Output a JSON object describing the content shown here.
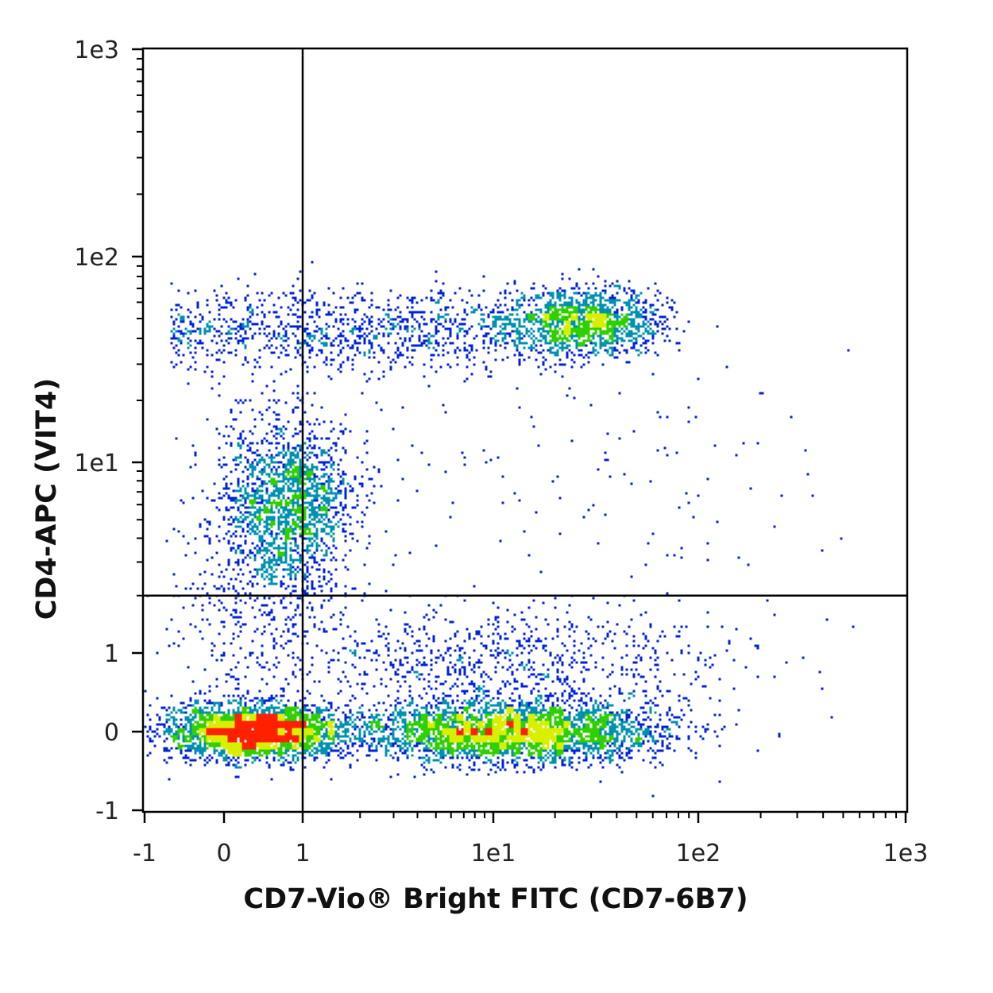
{
  "chart_data": {
    "type": "scatter",
    "subtype": "flow-cytometry density dot plot",
    "xlabel": "CD7-Vio® Bright FITC (CD7-6B7)",
    "ylabel": "CD4-APC (VIT4)",
    "x_scale": "hyperlog (linear -1..1, log above 1)",
    "y_scale": "hyperlog (linear -1..1, log above 1)",
    "xlim": [
      -1,
      1000
    ],
    "ylim": [
      -1,
      1000
    ],
    "x_ticks": [
      {
        "value": -1,
        "label": "-1"
      },
      {
        "value": 0,
        "label": "0"
      },
      {
        "value": 1,
        "label": "1"
      },
      {
        "value": 10,
        "label": "1e1"
      },
      {
        "value": 100,
        "label": "1e2"
      },
      {
        "value": 1000,
        "label": "1e3"
      }
    ],
    "y_ticks": [
      {
        "value": -1,
        "label": "-1"
      },
      {
        "value": 0,
        "label": "0"
      },
      {
        "value": 1,
        "label": "1"
      },
      {
        "value": 10,
        "label": "1e1"
      },
      {
        "value": 100,
        "label": "1e2"
      },
      {
        "value": 1000,
        "label": "1e3"
      }
    ],
    "quadrant_gates": {
      "x": 1,
      "y": 2
    },
    "populations": [
      {
        "quadrant": "CD4- CD7-",
        "x_center": 0.4,
        "y_center": 0,
        "relative_density": "highest"
      },
      {
        "quadrant": "CD4- CD7+",
        "x_center": 12,
        "y_center": 0,
        "relative_density": "high"
      },
      {
        "quadrant": "CD4+ CD7-",
        "x_center": 0.8,
        "y_center": 6,
        "relative_density": "medium"
      },
      {
        "quadrant": "CD4+ CD7+",
        "x_center": 30,
        "y_center": 48,
        "relative_density": "medium"
      }
    ],
    "color_scale": [
      "#0022dd",
      "#0090b0",
      "#30d000",
      "#d8f000",
      "#ff2000"
    ],
    "grid": false,
    "legend": "none"
  }
}
